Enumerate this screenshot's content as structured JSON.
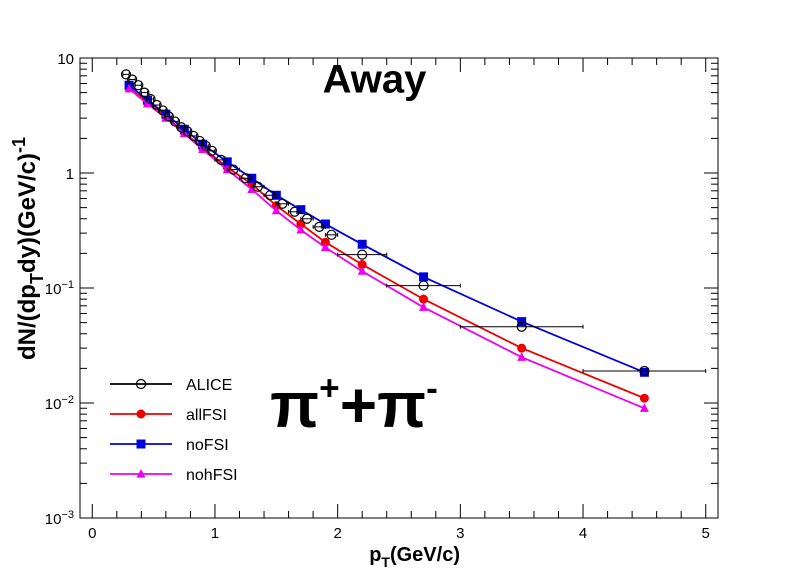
{
  "chart_data": {
    "type": "scatter",
    "title": "",
    "xlabel": "p",
    "xlabel_sub": "T",
    "xlabel_tail": "(GeV/c)",
    "ylabel_parts": [
      "dN/(dp",
      "T",
      "dy)(GeV/c)",
      "-1"
    ],
    "xlim": [
      -0.1,
      5.1
    ],
    "ylim": [
      0.001,
      10
    ],
    "yscale": "log",
    "grid": false,
    "x_ticks": [
      {
        "value": 0,
        "label": "0"
      },
      {
        "value": 1,
        "label": "1"
      },
      {
        "value": 2,
        "label": "2"
      },
      {
        "value": 3,
        "label": "3"
      },
      {
        "value": 4,
        "label": "4"
      },
      {
        "value": 5,
        "label": "5"
      }
    ],
    "y_ticks": [
      {
        "value": 10,
        "base": "10",
        "exp": ""
      },
      {
        "value": 1,
        "base": "1",
        "exp": ""
      },
      {
        "value": 0.1,
        "base": "10",
        "exp": "−1"
      },
      {
        "value": 0.01,
        "base": "10",
        "exp": "−2"
      },
      {
        "value": 0.001,
        "base": "10",
        "exp": "−3"
      }
    ],
    "annotations": [
      {
        "text": "Away",
        "x": 2.3,
        "y": 5.0,
        "size": 40
      },
      {
        "text": "π",
        "sup": "+",
        "text2": "+π",
        "sup2": "-",
        "x": 1.45,
        "y": 0.0062,
        "size": 64
      }
    ],
    "legend": {
      "placement": "bottom-left"
    },
    "series": [
      {
        "name": "ALICE",
        "color": "#000000",
        "marker": "open-circle",
        "line": false,
        "x": [
          0.275,
          0.325,
          0.375,
          0.425,
          0.475,
          0.525,
          0.575,
          0.625,
          0.675,
          0.725,
          0.775,
          0.825,
          0.875,
          0.925,
          0.975,
          1.05,
          1.15,
          1.25,
          1.35,
          1.45,
          1.55,
          1.65,
          1.75,
          1.85,
          1.95,
          2.2,
          2.7,
          3.5,
          4.5
        ],
        "y": [
          7.2,
          6.5,
          5.8,
          5.0,
          4.4,
          3.9,
          3.5,
          3.1,
          2.8,
          2.5,
          2.3,
          2.1,
          1.9,
          1.72,
          1.56,
          1.3,
          1.07,
          0.9,
          0.76,
          0.64,
          0.54,
          0.46,
          0.4,
          0.34,
          0.29,
          0.195,
          0.105,
          0.046,
          0.019
        ],
        "xerr": [
          0.025,
          0.025,
          0.025,
          0.025,
          0.025,
          0.025,
          0.025,
          0.025,
          0.025,
          0.025,
          0.025,
          0.025,
          0.025,
          0.025,
          0.025,
          0.05,
          0.05,
          0.05,
          0.05,
          0.05,
          0.05,
          0.05,
          0.05,
          0.05,
          0.05,
          0.2,
          0.3,
          0.5,
          0.5
        ]
      },
      {
        "name": "allFSI",
        "color": "#ee0000",
        "marker": "filled-circle",
        "line": true,
        "x": [
          0.3,
          0.45,
          0.6,
          0.75,
          0.9,
          1.1,
          1.3,
          1.5,
          1.7,
          1.9,
          2.2,
          2.7,
          3.5,
          4.5
        ],
        "y": [
          5.5,
          4.1,
          3.1,
          2.25,
          1.65,
          1.12,
          0.8,
          0.52,
          0.36,
          0.25,
          0.16,
          0.08,
          0.03,
          0.011
        ]
      },
      {
        "name": "noFSI",
        "color": "#0000dd",
        "marker": "filled-square",
        "line": true,
        "x": [
          0.3,
          0.45,
          0.6,
          0.75,
          0.9,
          1.1,
          1.3,
          1.5,
          1.7,
          1.9,
          2.2,
          2.7,
          3.5,
          4.5
        ],
        "y": [
          5.8,
          4.3,
          3.25,
          2.4,
          1.78,
          1.25,
          0.9,
          0.64,
          0.48,
          0.36,
          0.24,
          0.125,
          0.051,
          0.0185
        ]
      },
      {
        "name": "nohFSI",
        "color": "#ee00ee",
        "marker": "filled-triangle",
        "line": true,
        "x": [
          0.3,
          0.45,
          0.6,
          0.75,
          0.9,
          1.1,
          1.3,
          1.5,
          1.7,
          1.9,
          2.2,
          2.7,
          3.5,
          4.5
        ],
        "y": [
          5.4,
          4.0,
          3.0,
          2.2,
          1.6,
          1.07,
          0.72,
          0.47,
          0.32,
          0.225,
          0.14,
          0.068,
          0.025,
          0.009
        ]
      }
    ]
  }
}
